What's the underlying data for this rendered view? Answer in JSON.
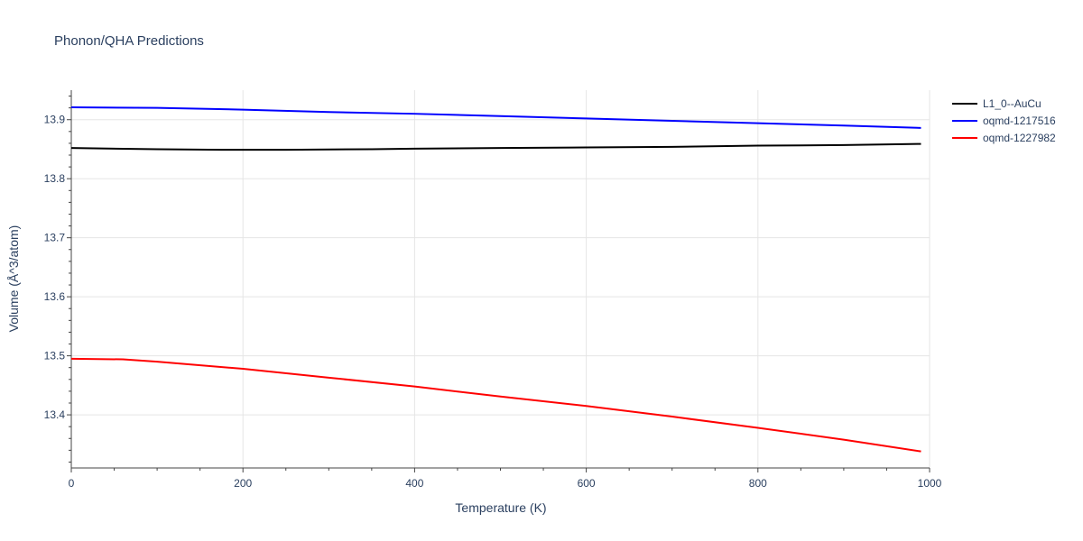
{
  "chart_data": {
    "type": "line",
    "title": "Phonon/QHA Predictions",
    "xlabel": "Temperature (K)",
    "ylabel": "Volume (Å^3/atom)",
    "xlim": [
      0,
      1000
    ],
    "ylim": [
      13.31,
      13.95
    ],
    "xticks": [
      0,
      200,
      400,
      600,
      800,
      1000
    ],
    "yticks": [
      13.4,
      13.5,
      13.6,
      13.7,
      13.8,
      13.9
    ],
    "grid": true,
    "legend_position": "top-right",
    "series": [
      {
        "name": "L1_0--AuCu",
        "color": "#000000",
        "x": [
          0,
          100,
          175,
          250,
          350,
          400,
          500,
          600,
          700,
          800,
          900,
          990
        ],
        "y": [
          13.852,
          13.85,
          13.849,
          13.849,
          13.85,
          13.851,
          13.852,
          13.853,
          13.854,
          13.856,
          13.857,
          13.859
        ]
      },
      {
        "name": "oqmd-1217516",
        "color": "#0000ff",
        "x": [
          0,
          100,
          200,
          300,
          400,
          500,
          600,
          700,
          800,
          900,
          990
        ],
        "y": [
          13.921,
          13.92,
          13.917,
          13.913,
          13.91,
          13.906,
          13.902,
          13.898,
          13.894,
          13.89,
          13.886
        ]
      },
      {
        "name": "oqmd-1227982",
        "color": "#ff0000",
        "x": [
          0,
          60,
          100,
          200,
          300,
          400,
          500,
          600,
          700,
          800,
          900,
          990
        ],
        "y": [
          13.495,
          13.494,
          13.49,
          13.478,
          13.463,
          13.448,
          13.431,
          13.415,
          13.397,
          13.378,
          13.358,
          13.338
        ]
      }
    ]
  }
}
